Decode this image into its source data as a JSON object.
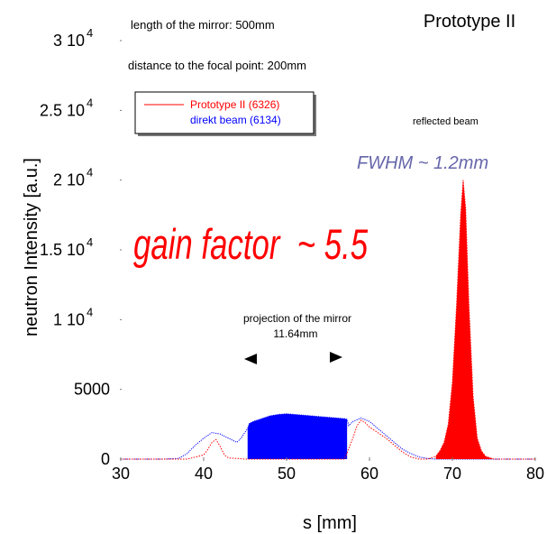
{
  "chart_data": {
    "type": "line",
    "title": "Prototype II",
    "xlabel": "s [mm]",
    "ylabel": "neutron Intensity [a.u.]",
    "xlim": [
      30,
      80
    ],
    "ylim": [
      0,
      30000
    ],
    "x_ticks": [
      "30",
      "40",
      "50",
      "60",
      "70",
      "80"
    ],
    "y_ticks": [
      {
        "value": 0,
        "mantissa": "0",
        "exp": ""
      },
      {
        "value": 5000,
        "mantissa": "5000",
        "exp": ""
      },
      {
        "value": 10000,
        "mantissa": "1 10",
        "exp": "4"
      },
      {
        "value": 15000,
        "mantissa": "1.5 10",
        "exp": "4"
      },
      {
        "value": 20000,
        "mantissa": "2 10",
        "exp": "4"
      },
      {
        "value": 25000,
        "mantissa": "2.5 10",
        "exp": "4"
      },
      {
        "value": 30000,
        "mantissa": "3 10",
        "exp": "4"
      }
    ],
    "grid": false,
    "legend_position": "top-left",
    "series": [
      {
        "name": "Prototype II (6326)",
        "color": "#ff0000",
        "x": [
          30,
          38,
          39,
          40,
          40.5,
          41,
          41.5,
          42,
          42.5,
          43,
          44,
          45,
          46,
          50,
          56,
          57,
          58,
          58.5,
          59,
          59.5,
          60,
          61,
          62,
          63,
          64,
          65,
          66,
          67,
          68,
          68.5,
          69,
          69.5,
          70,
          70.5,
          71,
          71.3,
          71.6,
          72,
          72.5,
          73,
          73.5,
          74,
          75,
          80
        ],
        "y": [
          0,
          0,
          150,
          300,
          700,
          1200,
          1400,
          900,
          300,
          80,
          50,
          0,
          0,
          0,
          0,
          0,
          1500,
          2400,
          2800,
          2600,
          2300,
          1900,
          1500,
          1000,
          500,
          150,
          0,
          0,
          200,
          600,
          1200,
          2500,
          5500,
          11000,
          17500,
          20000,
          18000,
          11000,
          4500,
          1500,
          600,
          200,
          0,
          0
        ]
      },
      {
        "name": "direkt beam (6134)",
        "color": "#0000ff",
        "x": [
          30,
          35,
          37,
          38,
          39,
          40,
          41,
          42,
          43,
          44,
          44.5,
          45.3,
          45.5,
          46,
          47,
          48,
          49,
          50,
          51,
          52,
          53,
          54,
          55,
          56,
          57,
          57.3,
          57.5,
          58,
          59,
          60,
          61,
          62,
          63,
          64,
          65,
          66,
          67,
          68,
          69,
          70,
          71,
          72,
          73,
          75,
          80
        ],
        "y": [
          0,
          0,
          50,
          400,
          1000,
          1500,
          1900,
          1800,
          1500,
          1200,
          1500,
          2200,
          2550,
          2700,
          2900,
          3100,
          3200,
          3250,
          3200,
          3150,
          3100,
          3050,
          3000,
          2950,
          2900,
          2850,
          2400,
          2700,
          2950,
          2700,
          2200,
          1700,
          1200,
          700,
          400,
          150,
          50,
          0,
          0,
          0,
          0,
          0,
          0,
          0,
          0
        ]
      }
    ],
    "annotations": {
      "length": "length of the mirror: 500mm",
      "distance": "distance to the focal point: 200mm",
      "reflected": "reflected beam",
      "fwhm": "FWHM ~ 1.2mm",
      "gain": "gain factor  ~ 5.5",
      "projection_line1": "projection of the mirror",
      "projection_line2": "11.64mm"
    }
  }
}
